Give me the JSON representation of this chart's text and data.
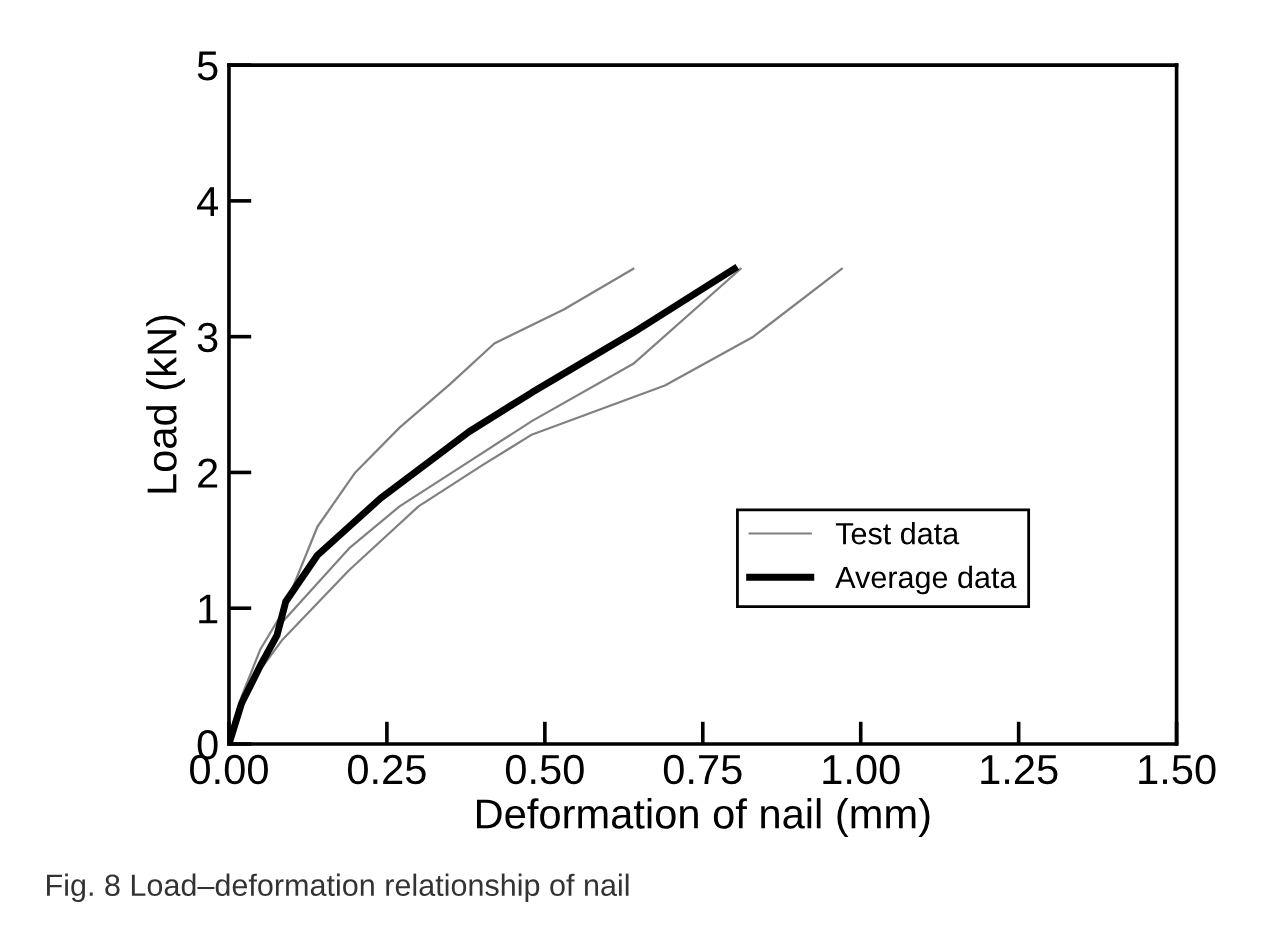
{
  "chart_data": {
    "type": "line",
    "xlabel": "Deformation of nail (mm)",
    "ylabel": "Load (kN)",
    "xlim": [
      0,
      1.5
    ],
    "ylim": [
      0,
      5
    ],
    "xticks": [
      {
        "value": 0,
        "label": "0.00"
      },
      {
        "value": 0.25,
        "label": "0.25"
      },
      {
        "value": 0.5,
        "label": "0.50"
      },
      {
        "value": 0.75,
        "label": "0.75"
      },
      {
        "value": 1,
        "label": "1.00"
      },
      {
        "value": 1.25,
        "label": "1.25"
      },
      {
        "value": 1.5,
        "label": "1.50"
      }
    ],
    "yticks": [
      0,
      1,
      2,
      3,
      4,
      5
    ],
    "grid": false,
    "legend": "lower right",
    "line_style": "solid",
    "marker": "none",
    "annotations": [
      "Fig. 8 Load–deformation relationship of nail"
    ],
    "series": [
      {
        "name": "Test data",
        "color": "#808080",
        "x": [
          0,
          0.02,
          0.05,
          0.085,
          0.14,
          0.2,
          0.27,
          0.35,
          0.42,
          0.53,
          0.64
        ],
        "values": [
          0,
          0.35,
          0.7,
          0.97,
          1.6,
          2.0,
          2.33,
          2.65,
          2.95,
          3.2,
          3.5
        ]
      },
      {
        "color": "#808080",
        "x": [
          0,
          0.02,
          0.05,
          0.085,
          0.19,
          0.27,
          0.38,
          0.48,
          0.64,
          0.81
        ],
        "values": [
          0,
          0.3,
          0.6,
          0.9,
          1.44,
          1.75,
          2.08,
          2.38,
          2.8,
          3.5
        ]
      },
      {
        "color": "#808080",
        "x": [
          0,
          0.02,
          0.05,
          0.085,
          0.19,
          0.3,
          0.4,
          0.48,
          0.69,
          0.83,
          0.97
        ],
        "values": [
          0,
          0.28,
          0.55,
          0.77,
          1.28,
          1.75,
          2.05,
          2.28,
          2.64,
          3.0,
          3.5
        ]
      },
      {
        "name": "Average data",
        "color": "#000000",
        "x": [
          0,
          0.02,
          0.05,
          0.076,
          0.09,
          0.14,
          0.19,
          0.24,
          0.3,
          0.38,
          0.48,
          0.64,
          0.8
        ],
        "values": [
          0,
          0.3,
          0.58,
          0.8,
          1.05,
          1.39,
          1.6,
          1.81,
          2.02,
          2.3,
          2.59,
          3.03,
          3.5
        ]
      }
    ]
  }
}
